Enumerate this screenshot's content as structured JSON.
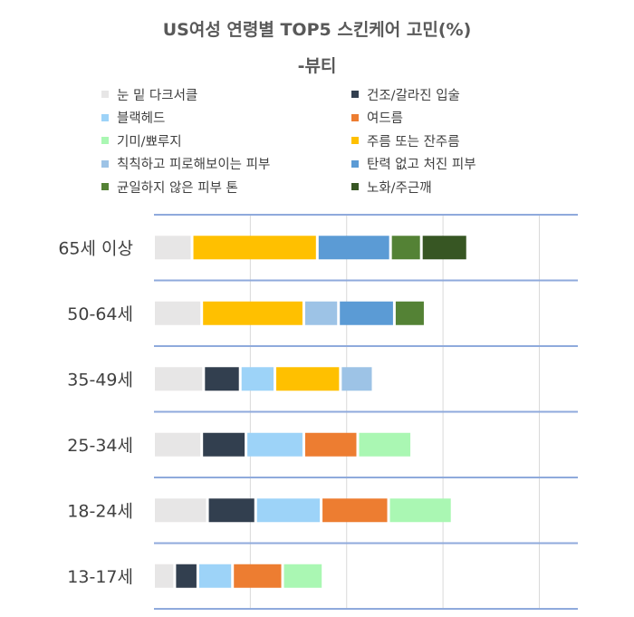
{
  "chart_data": {
    "type": "bar",
    "orientation": "horizontal",
    "stacked": true,
    "title": "US여성 연령별 TOP5 스킨케어 고민(%)",
    "subtitle": "-뷰티",
    "xlabel": "",
    "ylabel": "",
    "xlim": [
      0,
      220
    ],
    "grid": true,
    "legend_position": "top",
    "categories": [
      "65세 이상",
      "50-64세",
      "35-49세",
      "25-34세",
      "18-24세",
      "13-17세"
    ],
    "series": [
      {
        "name": "눈 밑 다크서클",
        "color": "#e7e6e6",
        "values": [
          20,
          25,
          26,
          25,
          28,
          11
        ]
      },
      {
        "name": "건조/갈라진 입술",
        "color": "#323f4f",
        "values": [
          0,
          0,
          19,
          23,
          25,
          12
        ]
      },
      {
        "name": "블랙헤드",
        "color": "#9dd3f8",
        "values": [
          0,
          0,
          18,
          30,
          34,
          18
        ]
      },
      {
        "name": "여드름",
        "color": "#ed7d31",
        "values": [
          0,
          0,
          0,
          28,
          35,
          26
        ]
      },
      {
        "name": "기미/뾰루지",
        "color": "#aaf7b3",
        "values": [
          0,
          0,
          0,
          28,
          33,
          21
        ]
      },
      {
        "name": "주름 또는 잔주름",
        "color": "#ffc000",
        "values": [
          65,
          53,
          34,
          0,
          0,
          0
        ]
      },
      {
        "name": "칙칙하고 피로해보이는 피부",
        "color": "#9dc3e6",
        "values": [
          0,
          18,
          17,
          0,
          0,
          0
        ]
      },
      {
        "name": "탄력 없고 처진 피부",
        "color": "#5b9bd5",
        "values": [
          38,
          29,
          0,
          0,
          0,
          0
        ]
      },
      {
        "name": "균일하지 않은 피부 톤",
        "color": "#548235",
        "values": [
          16,
          16,
          0,
          0,
          0,
          0
        ]
      },
      {
        "name": "노화/주근깨",
        "color": "#375623",
        "values": [
          24,
          0,
          0,
          0,
          0,
          0
        ]
      }
    ]
  }
}
